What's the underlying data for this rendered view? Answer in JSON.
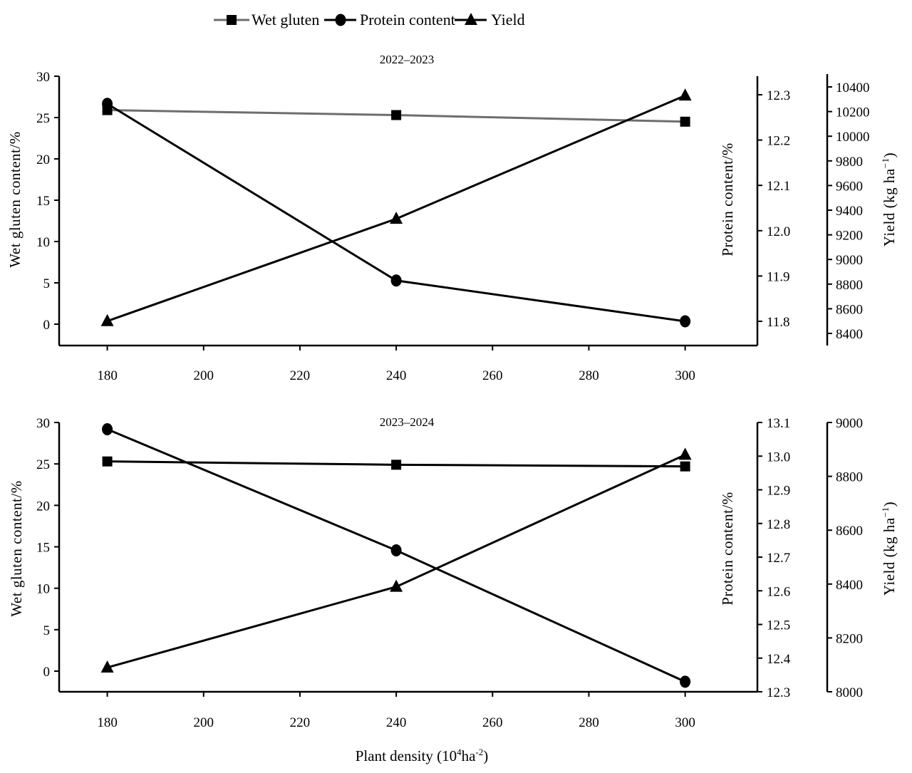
{
  "legend": {
    "items": [
      {
        "label": "Wet gluten",
        "marker": "square",
        "color": "#6e6e6e"
      },
      {
        "label": "Protein content",
        "marker": "circle",
        "color": "#000000"
      },
      {
        "label": "Yield",
        "marker": "triangle",
        "color": "#000000"
      }
    ]
  },
  "xlabel": {
    "main": "Plant density (10",
    "sup1": "4",
    "mid": "ha",
    "sup2": "-2",
    "end": ")"
  },
  "chart_data": [
    {
      "type": "line",
      "title": "2022–2023",
      "x": [
        180,
        240,
        300
      ],
      "xticks": [
        "180",
        "200",
        "220",
        "240",
        "260",
        "280",
        "300"
      ],
      "xlim": [
        170,
        315
      ],
      "series": [
        {
          "name": "Wet gluten",
          "axis": "left",
          "values": [
            25.9,
            25.3,
            24.5
          ],
          "color": "#6e6e6e"
        },
        {
          "name": "Protein content",
          "axis": "right1",
          "values": [
            12.28,
            11.89,
            11.8
          ],
          "color": "#000000"
        },
        {
          "name": "Yield",
          "axis": "right2",
          "values": [
            8500,
            9330,
            10330
          ],
          "color": "#000000"
        }
      ],
      "axes": {
        "left": {
          "label": "Wet gluten content/%",
          "lim": [
            0,
            30
          ],
          "ticks": [
            "0",
            "5",
            "10",
            "15",
            "20",
            "25",
            "30"
          ]
        },
        "right1": {
          "label": "Protein content/%",
          "lim": [
            11.8,
            12.3
          ],
          "ticks": [
            "11.8",
            "11.9",
            "12.0",
            "12.1",
            "12.2",
            "12.3"
          ]
        },
        "right2": {
          "label": "Yield (kg ha",
          "label_sup": "−1",
          "label_end": ")",
          "lim": [
            8400,
            10400
          ],
          "ticks": [
            "8400",
            "8600",
            "8800",
            "9000",
            "9200",
            "9400",
            "9600",
            "9800",
            "10000",
            "10200",
            "10400"
          ]
        }
      }
    },
    {
      "type": "line",
      "title": "2023–2024",
      "x": [
        180,
        240,
        300
      ],
      "xticks": [
        "180",
        "200",
        "220",
        "240",
        "260",
        "280",
        "300"
      ],
      "xlim": [
        170,
        315
      ],
      "series": [
        {
          "name": "Wet gluten",
          "axis": "left",
          "values": [
            25.3,
            24.9,
            24.7
          ],
          "color": "#000000"
        },
        {
          "name": "Protein content",
          "axis": "right1",
          "values": [
            13.08,
            12.72,
            12.33
          ],
          "color": "#000000"
        },
        {
          "name": "Yield",
          "axis": "right2",
          "values": [
            8090,
            8390,
            8880
          ],
          "color": "#000000"
        }
      ],
      "axes": {
        "left": {
          "label": "Wet gluten content/%",
          "lim": [
            0,
            30
          ],
          "ticks": [
            "0",
            "5",
            "10",
            "15",
            "20",
            "25",
            "30"
          ]
        },
        "right1": {
          "label": "Protein content/%",
          "lim": [
            12.3,
            13.1
          ],
          "ticks": [
            "12.3",
            "12.4",
            "12.5",
            "12.6",
            "12.7",
            "12.8",
            "12.9",
            "13.0",
            "13.1"
          ]
        },
        "right2": {
          "label": "Yield (kg ha",
          "label_sup": "−1",
          "label_end": ")",
          "lim": [
            8000,
            9000
          ],
          "ticks": [
            "8000",
            "8200",
            "8400",
            "8600",
            "8800",
            "9000"
          ]
        }
      }
    }
  ]
}
